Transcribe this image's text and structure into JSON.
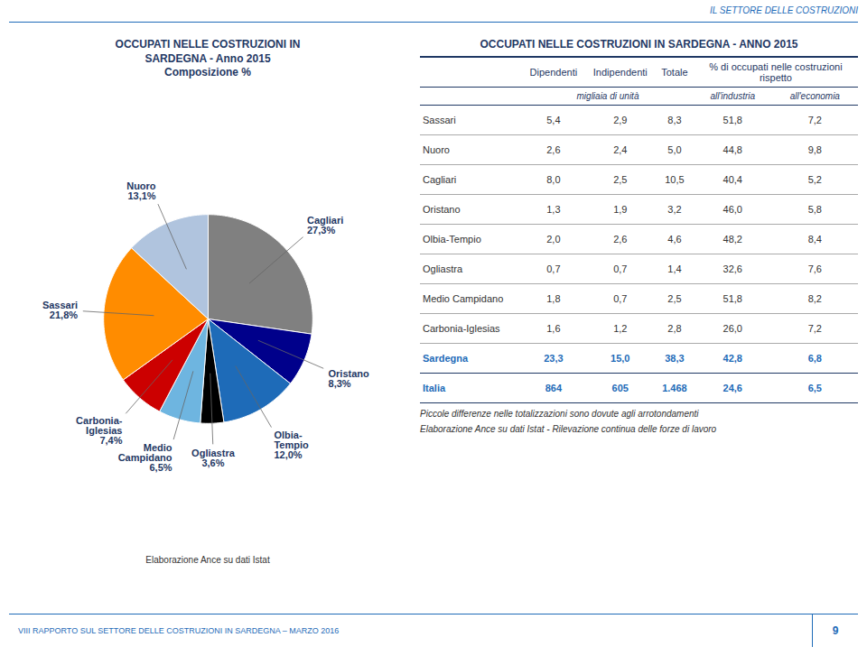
{
  "page": {
    "header": "IL SETTORE DELLE COSTRUZIONI",
    "footer": "VIII RAPPORTO SUL SETTORE DELLE COSTRUZIONI IN SARDEGNA – MARZO 2016",
    "page_number": "9"
  },
  "chart_data": [
    {
      "type": "pie",
      "title": "OCCUPATI NELLE COSTRUZIONI IN\nSARDEGNA - Anno 2015\nComposizione %",
      "categories": [
        "Cagliari",
        "Oristano",
        "Olbia-\nTempio",
        "Ogliastra",
        "Medio\nCampidano",
        "Carbonia-\nIglesias",
        "Sassari",
        "Nuoro"
      ],
      "values": [
        27.3,
        8.3,
        12.0,
        3.6,
        6.5,
        7.4,
        21.8,
        13.1
      ],
      "value_labels": [
        "27,3%",
        "8,3%",
        "12,0%",
        "3,6%",
        "6,5%",
        "7,4%",
        "21,8%",
        "13,1%"
      ],
      "colors": [
        "#808080",
        "#00008B",
        "#1E6BB8",
        "#000000",
        "#6EB5E0",
        "#CC0000",
        "#FF8C00",
        "#B0C4DE"
      ],
      "data_labels": true,
      "annotations": [
        "Elaborazione Ance su dati Istat"
      ]
    },
    {
      "type": "table",
      "title": "OCCUPATI NELLE COSTRUZIONI IN SARDEGNA - ANNO 2015",
      "columns": [
        "Dipendenti",
        "Indipendenti",
        "Totale",
        "% di occupati nelle costruzioni\nrispetto"
      ],
      "subcolumns": [
        "migliaia di unità",
        "all'industria",
        "all'economia"
      ],
      "rows": [
        [
          "Sassari",
          "5,4",
          "2,9",
          "8,3",
          "51,8",
          "7,2"
        ],
        [
          "Nuoro",
          "2,6",
          "2,4",
          "5,0",
          "44,8",
          "9,8"
        ],
        [
          "Cagliari",
          "8,0",
          "2,5",
          "10,5",
          "40,4",
          "5,2"
        ],
        [
          "Oristano",
          "1,3",
          "1,9",
          "3,2",
          "46,0",
          "5,8"
        ],
        [
          "Olbia-Tempio",
          "2,0",
          "2,6",
          "4,6",
          "48,2",
          "8,4"
        ],
        [
          "Ogliastra",
          "0,7",
          "0,7",
          "1,4",
          "32,6",
          "7,6"
        ],
        [
          "Medio Campidano",
          "1,8",
          "0,7",
          "2,5",
          "51,8",
          "8,2"
        ],
        [
          "Carbonia-Iglesias",
          "1,6",
          "1,2",
          "2,8",
          "26,0",
          "7,2"
        ]
      ],
      "total_rows": [
        [
          "Sardegna",
          "23,3",
          "15,0",
          "38,3",
          "42,8",
          "6,8"
        ],
        [
          "Italia",
          "864",
          "605",
          "1.468",
          "24,6",
          "6,5"
        ]
      ],
      "notes": [
        "Piccole differenze nelle totalizzazioni sono dovute agli arrotondamenti",
        "Elaborazione Ance su dati Istat - Rilevazione continua delle forze di lavoro"
      ]
    }
  ]
}
